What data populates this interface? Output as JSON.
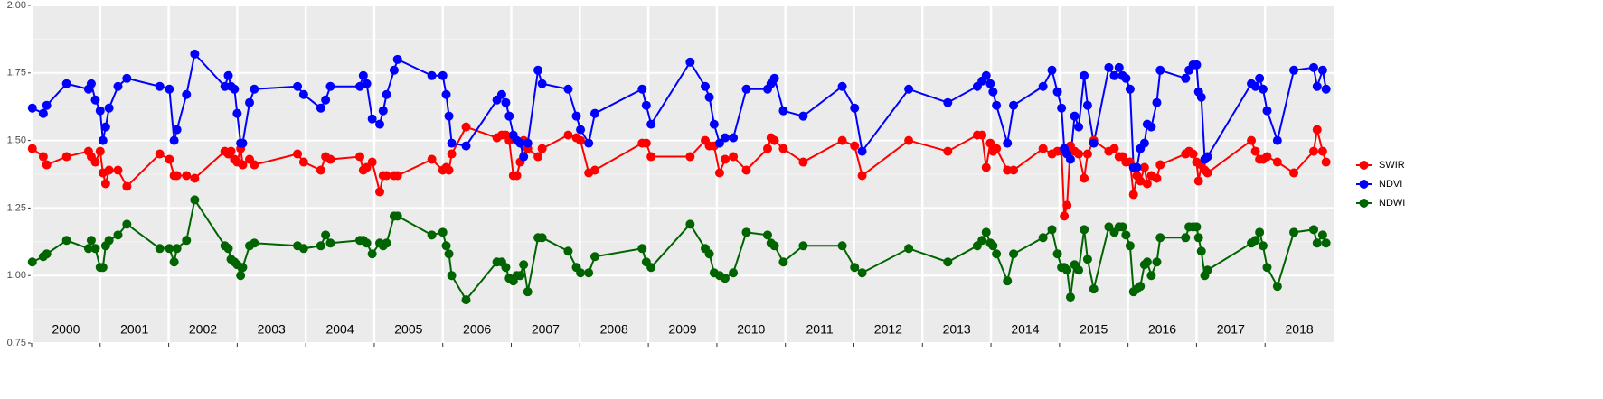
{
  "chart_data": {
    "type": "line",
    "x": [
      2000.01,
      2000.17,
      2000.22,
      2000.51,
      2000.83,
      2000.87,
      2000.93,
      2001.0,
      2001.04,
      2001.08,
      2001.13,
      2001.26,
      2001.39,
      2001.87,
      2002.01,
      2002.08,
      2002.12,
      2002.26,
      2002.38,
      2002.82,
      2002.87,
      2002.91,
      2002.96,
      2003.0,
      2003.05,
      2003.08,
      2003.18,
      2003.25,
      2003.88,
      2003.97,
      2004.22,
      2004.29,
      2004.36,
      2004.79,
      2004.84,
      2004.89,
      2004.97,
      2005.08,
      2005.13,
      2005.18,
      2005.29,
      2005.34,
      2005.84,
      2006.0,
      2006.05,
      2006.09,
      2006.13,
      2006.34,
      2006.79,
      2006.86,
      2006.92,
      2006.97,
      2007.03,
      2007.08,
      2007.13,
      2007.18,
      2007.24,
      2007.39,
      2007.45,
      2007.83,
      2007.95,
      2008.01,
      2008.13,
      2008.22,
      2008.91,
      2008.97,
      2009.04,
      2009.61,
      2009.83,
      2009.89,
      2009.96,
      2010.04,
      2010.12,
      2010.24,
      2010.43,
      2010.74,
      2010.79,
      2010.84,
      2010.97,
      2011.26,
      2011.83,
      2012.01,
      2012.12,
      2012.8,
      2013.37,
      2013.8,
      2013.87,
      2013.93,
      2013.99,
      2014.03,
      2014.08,
      2014.24,
      2014.33,
      2014.76,
      2014.89,
      2014.97,
      2015.03,
      2015.07,
      2015.11,
      2015.16,
      2015.22,
      2015.28,
      2015.36,
      2015.41,
      2015.5,
      2015.72,
      2015.8,
      2015.87,
      2015.92,
      2015.97,
      2016.03,
      2016.08,
      2016.13,
      2016.18,
      2016.24,
      2016.28,
      2016.34,
      2016.42,
      2016.47,
      2016.84,
      2016.89,
      2016.95,
      2017.0,
      2017.03,
      2017.07,
      2017.12,
      2017.16,
      2017.8,
      2017.86,
      2017.92,
      2017.97,
      2018.03,
      2018.18,
      2018.42,
      2018.71,
      2018.76,
      2018.84,
      2018.89
    ],
    "series": [
      {
        "name": "SWIR",
        "color": "#ff0000",
        "values": [
          1.47,
          1.44,
          1.41,
          1.44,
          1.46,
          1.44,
          1.42,
          1.46,
          1.38,
          1.34,
          1.39,
          1.39,
          1.33,
          1.45,
          1.43,
          1.37,
          1.37,
          1.37,
          1.36,
          1.46,
          1.45,
          1.46,
          1.43,
          1.42,
          1.47,
          1.41,
          1.43,
          1.41,
          1.45,
          1.42,
          1.39,
          1.44,
          1.43,
          1.44,
          1.39,
          1.4,
          1.42,
          1.31,
          1.37,
          1.37,
          1.37,
          1.37,
          1.43,
          1.39,
          1.4,
          1.39,
          1.45,
          1.55,
          1.51,
          1.52,
          1.52,
          1.5,
          1.37,
          1.37,
          1.42,
          1.5,
          1.47,
          1.44,
          1.47,
          1.52,
          1.51,
          1.5,
          1.38,
          1.39,
          1.49,
          1.49,
          1.44,
          1.44,
          1.5,
          1.48,
          1.48,
          1.38,
          1.43,
          1.44,
          1.39,
          1.47,
          1.51,
          1.5,
          1.47,
          1.42,
          1.5,
          1.48,
          1.37,
          1.5,
          1.46,
          1.52,
          1.52,
          1.4,
          1.49,
          1.46,
          1.47,
          1.39,
          1.39,
          1.47,
          1.45,
          1.46,
          1.46,
          1.22,
          1.26,
          1.48,
          1.46,
          1.45,
          1.36,
          1.45,
          1.5,
          1.46,
          1.47,
          1.44,
          1.44,
          1.42,
          1.42,
          1.3,
          1.37,
          1.35,
          1.4,
          1.34,
          1.37,
          1.36,
          1.41,
          1.45,
          1.46,
          1.45,
          1.42,
          1.35,
          1.41,
          1.39,
          1.38,
          1.5,
          1.46,
          1.43,
          1.43,
          1.44,
          1.42,
          1.38,
          1.46,
          1.54,
          1.46,
          1.42
        ]
      },
      {
        "name": "NDVI",
        "color": "#0000ff",
        "values": [
          1.62,
          1.6,
          1.63,
          1.71,
          1.69,
          1.71,
          1.65,
          1.61,
          1.5,
          1.55,
          1.62,
          1.7,
          1.73,
          1.7,
          1.69,
          1.5,
          1.54,
          1.67,
          1.82,
          1.7,
          1.74,
          1.7,
          1.69,
          1.6,
          1.49,
          1.49,
          1.64,
          1.69,
          1.7,
          1.67,
          1.62,
          1.65,
          1.7,
          1.7,
          1.74,
          1.71,
          1.58,
          1.56,
          1.61,
          1.67,
          1.76,
          1.8,
          1.74,
          1.74,
          1.67,
          1.59,
          1.49,
          1.48,
          1.65,
          1.67,
          1.64,
          1.59,
          1.52,
          1.5,
          1.49,
          1.44,
          1.49,
          1.76,
          1.71,
          1.69,
          1.59,
          1.54,
          1.49,
          1.6,
          1.69,
          1.63,
          1.56,
          1.79,
          1.7,
          1.66,
          1.56,
          1.49,
          1.51,
          1.51,
          1.69,
          1.69,
          1.71,
          1.73,
          1.61,
          1.59,
          1.7,
          1.62,
          1.46,
          1.69,
          1.64,
          1.7,
          1.72,
          1.74,
          1.71,
          1.68,
          1.63,
          1.49,
          1.63,
          1.7,
          1.76,
          1.68,
          1.62,
          1.47,
          1.45,
          1.43,
          1.59,
          1.55,
          1.74,
          1.63,
          1.49,
          1.77,
          1.74,
          1.77,
          1.74,
          1.73,
          1.69,
          1.4,
          1.4,
          1.47,
          1.49,
          1.56,
          1.55,
          1.64,
          1.76,
          1.73,
          1.76,
          1.78,
          1.78,
          1.68,
          1.66,
          1.43,
          1.44,
          1.71,
          1.7,
          1.73,
          1.69,
          1.61,
          1.5,
          1.76,
          1.77,
          1.7,
          1.76,
          1.69
        ]
      },
      {
        "name": "NDWI",
        "color": "#006400",
        "values": [
          1.05,
          1.07,
          1.08,
          1.13,
          1.1,
          1.13,
          1.1,
          1.03,
          1.03,
          1.11,
          1.13,
          1.15,
          1.19,
          1.1,
          1.1,
          1.05,
          1.1,
          1.13,
          1.28,
          1.11,
          1.1,
          1.06,
          1.05,
          1.04,
          1.0,
          1.03,
          1.11,
          1.12,
          1.11,
          1.1,
          1.11,
          1.15,
          1.12,
          1.13,
          1.13,
          1.12,
          1.08,
          1.12,
          1.11,
          1.12,
          1.22,
          1.22,
          1.15,
          1.16,
          1.11,
          1.08,
          1.0,
          0.91,
          1.05,
          1.05,
          1.03,
          0.99,
          0.98,
          1.0,
          1.0,
          1.04,
          0.94,
          1.14,
          1.14,
          1.09,
          1.03,
          1.01,
          1.01,
          1.07,
          1.1,
          1.05,
          1.03,
          1.19,
          1.1,
          1.08,
          1.01,
          1.0,
          0.99,
          1.01,
          1.16,
          1.15,
          1.12,
          1.11,
          1.05,
          1.11,
          1.11,
          1.03,
          1.01,
          1.1,
          1.05,
          1.11,
          1.13,
          1.16,
          1.12,
          1.11,
          1.08,
          0.98,
          1.08,
          1.14,
          1.17,
          1.08,
          1.03,
          1.03,
          1.02,
          0.92,
          1.04,
          1.02,
          1.17,
          1.06,
          0.95,
          1.18,
          1.16,
          1.18,
          1.18,
          1.15,
          1.11,
          0.94,
          0.95,
          0.96,
          1.04,
          1.05,
          1.0,
          1.05,
          1.14,
          1.14,
          1.18,
          1.18,
          1.18,
          1.14,
          1.09,
          1.0,
          1.02,
          1.12,
          1.13,
          1.16,
          1.11,
          1.03,
          0.96,
          1.16,
          1.17,
          1.12,
          1.15,
          1.12
        ]
      }
    ],
    "xlim": [
      2000,
      2019
    ],
    "xticks": [
      2000,
      2001,
      2002,
      2003,
      2004,
      2005,
      2006,
      2007,
      2008,
      2009,
      2010,
      2011,
      2012,
      2013,
      2014,
      2015,
      2016,
      2017,
      2018
    ],
    "ylim": [
      0.75,
      2.0
    ],
    "yticks": [
      {
        "value": 0.75,
        "label": "0.75"
      },
      {
        "value": 1,
        "label": "1.00"
      },
      {
        "value": 1.25,
        "label": "1.25"
      },
      {
        "value": 1.5,
        "label": "1.50"
      },
      {
        "value": 1.75,
        "label": "1.75"
      },
      {
        "value": 2,
        "label": "2.00"
      }
    ],
    "grid": true,
    "legend": "right"
  }
}
